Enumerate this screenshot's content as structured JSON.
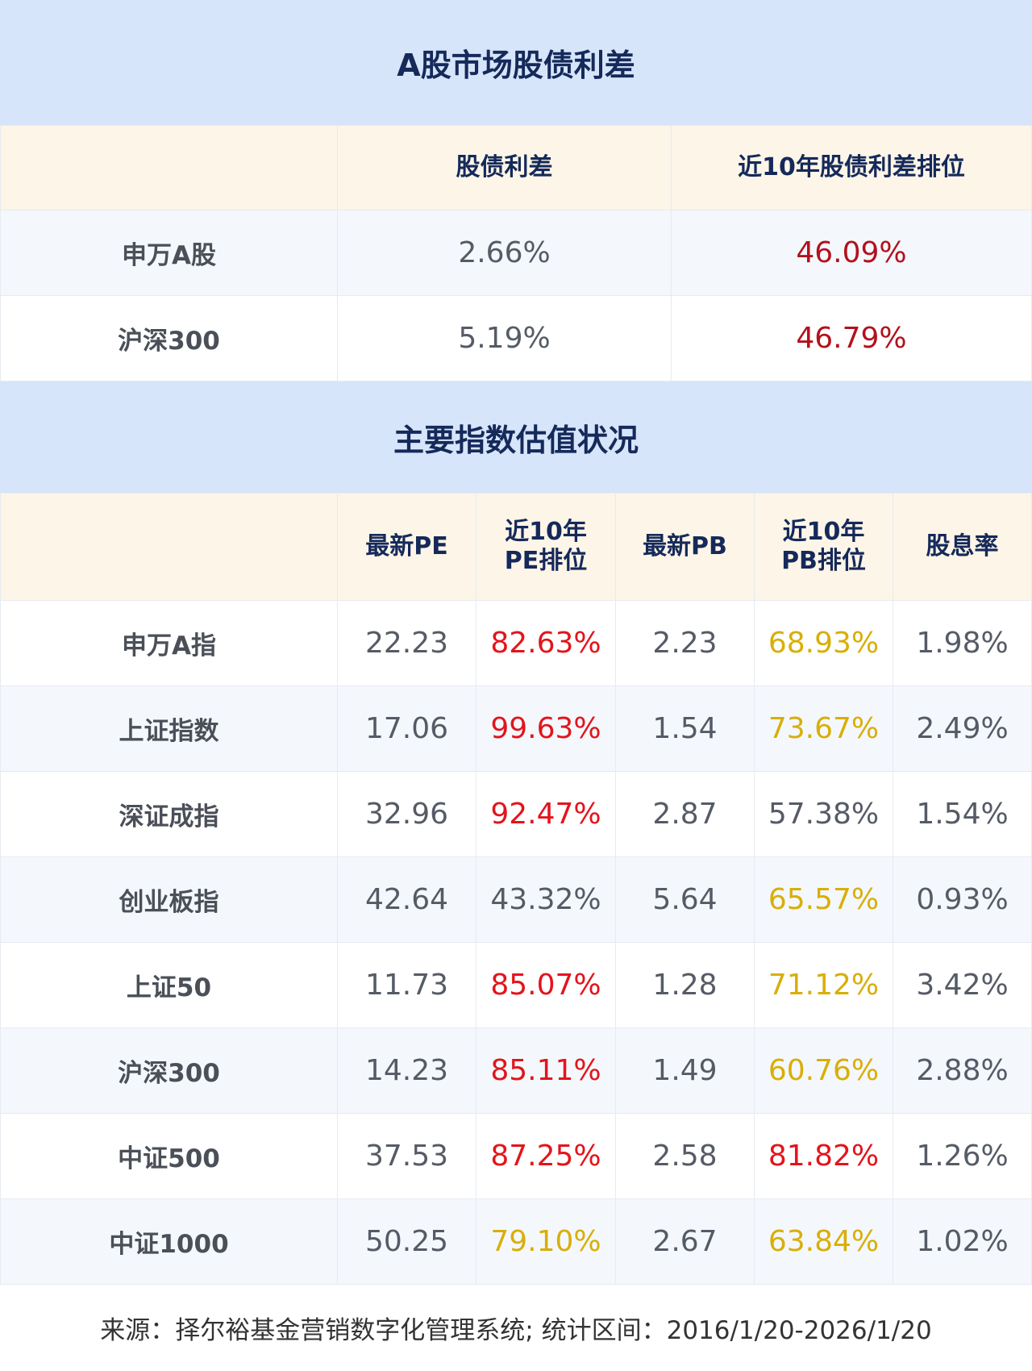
{
  "section1": {
    "title": "A股市场股债利差",
    "headers": [
      "",
      "股债利差",
      "近10年股债利差排位"
    ],
    "rows": [
      {
        "name": "申万A股",
        "spread": "2.66%",
        "rank": "46.09%"
      },
      {
        "name": "沪深300",
        "spread": "5.19%",
        "rank": "46.79%"
      }
    ]
  },
  "section2": {
    "title": "主要指数估值状况",
    "headers": [
      "",
      "最新PE",
      "近10年\nPE排位",
      "最新PB",
      "近10年\nPB排位",
      "股息率"
    ],
    "rows": [
      {
        "name": "申万A指",
        "pe": "22.23",
        "pe_rank": "82.63%",
        "pe_color": "red",
        "pb": "2.23",
        "pb_rank": "68.93%",
        "pb_color": "yel",
        "dy": "1.98%"
      },
      {
        "name": "上证指数",
        "pe": "17.06",
        "pe_rank": "99.63%",
        "pe_color": "red",
        "pb": "1.54",
        "pb_rank": "73.67%",
        "pb_color": "yel",
        "dy": "2.49%"
      },
      {
        "name": "深证成指",
        "pe": "32.96",
        "pe_rank": "92.47%",
        "pe_color": "red",
        "pb": "2.87",
        "pb_rank": "57.38%",
        "pb_color": "gray",
        "dy": "1.54%"
      },
      {
        "name": "创业板指",
        "pe": "42.64",
        "pe_rank": "43.32%",
        "pe_color": "gray",
        "pb": "5.64",
        "pb_rank": "65.57%",
        "pb_color": "yel",
        "dy": "0.93%"
      },
      {
        "name": "上证50",
        "pe": "11.73",
        "pe_rank": "85.07%",
        "pe_color": "red",
        "pb": "1.28",
        "pb_rank": "71.12%",
        "pb_color": "yel",
        "dy": "3.42%"
      },
      {
        "name": "沪深300",
        "pe": "14.23",
        "pe_rank": "85.11%",
        "pe_color": "red",
        "pb": "1.49",
        "pb_rank": "60.76%",
        "pb_color": "yel",
        "dy": "2.88%"
      },
      {
        "name": "中证500",
        "pe": "37.53",
        "pe_rank": "87.25%",
        "pe_color": "red",
        "pb": "2.58",
        "pb_rank": "81.82%",
        "pb_color": "red",
        "dy": "1.26%"
      },
      {
        "name": "中证1000",
        "pe": "50.25",
        "pe_rank": "79.10%",
        "pe_color": "yel",
        "pb": "2.67",
        "pb_rank": "63.84%",
        "pb_color": "yel",
        "dy": "1.02%"
      }
    ]
  },
  "colors": {
    "red": "#e3141c",
    "dark_red": "#b3111c",
    "yellow": "#d9ae07",
    "navy": "#15295a",
    "band": "#d6e5f9",
    "header": "#fdf5e7"
  },
  "footer": "来源：择尔裕基金营销数字化管理系统;  统计区间：2016/1/20-2026/1/20"
}
